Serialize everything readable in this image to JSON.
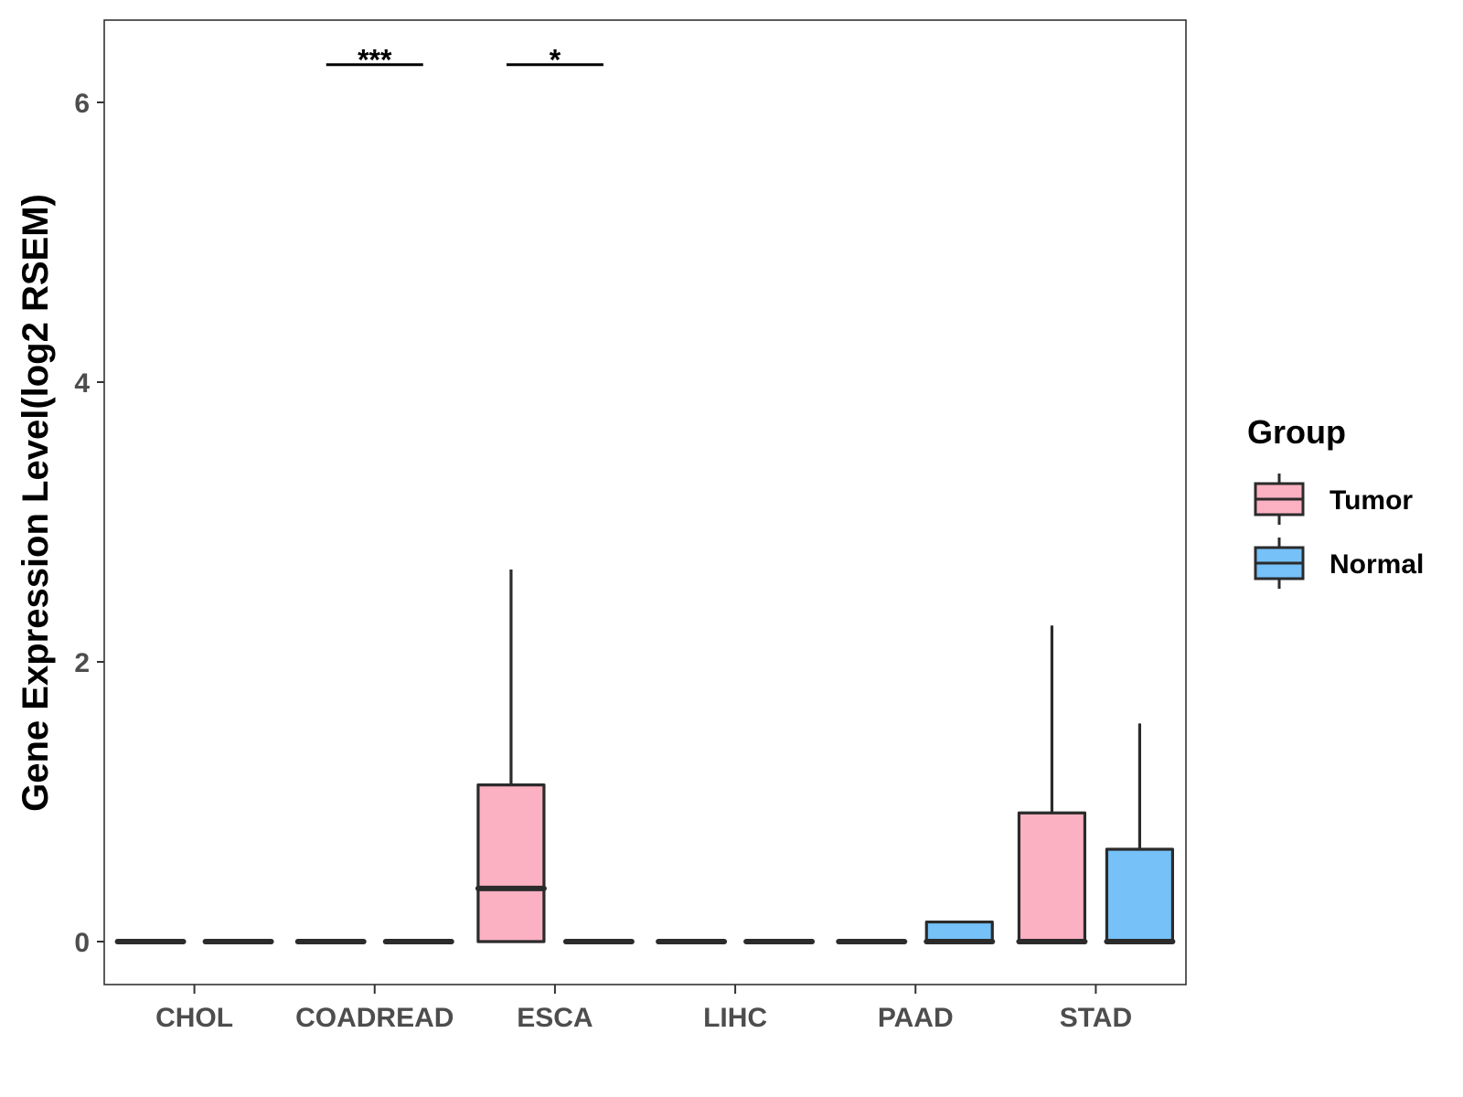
{
  "chart_data": {
    "type": "box",
    "ylabel": "Gene Expression Level(log2 RSEM)",
    "xlabel": "",
    "ylim": [
      -0.3,
      6.6
    ],
    "yticks": [
      0,
      2,
      4,
      6
    ],
    "ytick_labels": [
      "0",
      "2",
      "4",
      "6"
    ],
    "categories": [
      "CHOL",
      "COADREAD",
      "ESCA",
      "LIHC",
      "PAAD",
      "STAD"
    ],
    "legend": {
      "title": "Group",
      "position": "right",
      "entries": [
        {
          "name": "Tumor",
          "color": "#fbb1c2"
        },
        {
          "name": "Normal",
          "color": "#75c1f8"
        }
      ]
    },
    "grid": false,
    "series": [
      {
        "name": "Tumor",
        "color": "#fbb1c2",
        "boxes": [
          {
            "category": "CHOL",
            "min": 0,
            "q1": 0,
            "median": 0,
            "q3": 0,
            "max": 0
          },
          {
            "category": "COADREAD",
            "min": 0,
            "q1": 0,
            "median": 0,
            "q3": 0,
            "max": 0
          },
          {
            "category": "ESCA",
            "min": 0,
            "q1": 0,
            "median": 0.38,
            "q3": 1.12,
            "max": 2.66
          },
          {
            "category": "LIHC",
            "min": 0,
            "q1": 0,
            "median": 0,
            "q3": 0,
            "max": 0
          },
          {
            "category": "PAAD",
            "min": 0,
            "q1": 0,
            "median": 0,
            "q3": 0,
            "max": 0
          },
          {
            "category": "STAD",
            "min": 0,
            "q1": 0,
            "median": 0,
            "q3": 0.92,
            "max": 2.26
          }
        ]
      },
      {
        "name": "Normal",
        "color": "#75c1f8",
        "boxes": [
          {
            "category": "CHOL",
            "min": 0,
            "q1": 0,
            "median": 0,
            "q3": 0,
            "max": 0
          },
          {
            "category": "COADREAD",
            "min": 0,
            "q1": 0,
            "median": 0,
            "q3": 0,
            "max": 0
          },
          {
            "category": "ESCA",
            "min": 0,
            "q1": 0,
            "median": 0,
            "q3": 0,
            "max": 0
          },
          {
            "category": "LIHC",
            "min": 0,
            "q1": 0,
            "median": 0,
            "q3": 0,
            "max": 0
          },
          {
            "category": "PAAD",
            "min": 0,
            "q1": 0,
            "median": 0,
            "q3": 0.14,
            "max": 0.14
          },
          {
            "category": "STAD",
            "min": 0,
            "q1": 0,
            "median": 0,
            "q3": 0.66,
            "max": 1.56
          }
        ]
      }
    ],
    "annotations": [
      {
        "category": "COADREAD",
        "label": "***",
        "y": 6.27
      },
      {
        "category": "ESCA",
        "label": "*",
        "y": 6.27
      }
    ]
  }
}
